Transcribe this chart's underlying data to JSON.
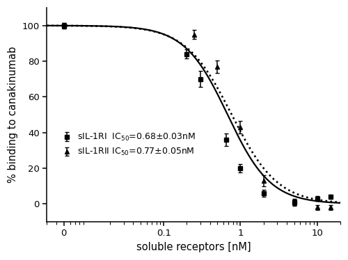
{
  "xlabel": "soluble receptors [nM]",
  "ylabel": "% binding to canakinumab",
  "ylim": [
    -10,
    110
  ],
  "yticks": [
    0,
    20,
    40,
    60,
    80,
    100
  ],
  "sIL1RI_x": [
    0.005,
    0.2,
    0.3,
    0.65,
    1.0,
    2.0,
    5.0,
    10.0,
    15.0
  ],
  "sIL1RI_y": [
    100.0,
    84.0,
    70.0,
    36.0,
    20.0,
    6.0,
    1.0,
    3.0,
    4.0
  ],
  "sIL1RI_yerr": [
    1.5,
    2.5,
    4.5,
    3.5,
    2.5,
    2.0,
    1.5,
    1.5,
    1.0
  ],
  "sIL1RII_x": [
    0.005,
    0.25,
    0.5,
    1.0,
    2.0,
    5.0,
    10.0,
    15.0
  ],
  "sIL1RII_y": [
    100.0,
    95.0,
    77.0,
    43.0,
    13.0,
    1.0,
    -2.0,
    -2.0
  ],
  "sIL1RII_yerr": [
    1.5,
    2.5,
    3.5,
    3.5,
    3.0,
    2.0,
    1.5,
    1.5
  ],
  "IC50_RI": 0.68,
  "IC50_RII": 0.77,
  "Hill_RI": 1.55,
  "Hill_RII": 1.45,
  "legend_label_RI": "sIL-1RI  IC$_{50}$=0.68±0.03nM",
  "legend_label_RII": "sIL-1RII IC$_{50}$=0.77±0.05nM",
  "color": "#000000",
  "bg_color": "#ffffff",
  "marker_RI": "s",
  "marker_RII": "^",
  "marker_size": 5,
  "line_width": 1.6,
  "capsize": 2.5,
  "elinewidth": 1.1,
  "x_zero_pos": 0.005,
  "xtick_positions": [
    0.005,
    0.1,
    1.0,
    10.0
  ],
  "xtick_labels": [
    "0",
    "0.1",
    "1",
    "10"
  ],
  "xlim_left": 0.003,
  "xlim_right": 20.0
}
